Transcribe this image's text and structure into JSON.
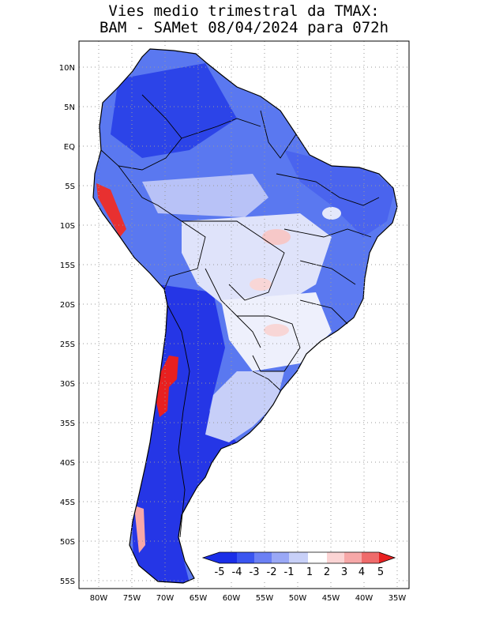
{
  "title": {
    "line1": "Vies medio trimestral da TMAX:",
    "line2": "BAM - SAMet 08/04/2024  para 072h"
  },
  "map": {
    "lat_labels": [
      "10N",
      "5N",
      "EQ",
      "5S",
      "10S",
      "15S",
      "20S",
      "25S",
      "30S",
      "35S",
      "40S",
      "45S",
      "50S",
      "55S"
    ],
    "lon_labels": [
      "80W",
      "75W",
      "70W",
      "65W",
      "60W",
      "55W",
      "50W",
      "45W",
      "40W",
      "35W"
    ],
    "grid": "dotted",
    "land_base_color": "#5a78f0"
  },
  "colorbar": {
    "labels": [
      "-5",
      "-4",
      "-3",
      "-2",
      "-1",
      "1",
      "2",
      "3",
      "4",
      "5"
    ],
    "colors": [
      "#1a2ee8",
      "#3a55f0",
      "#6b80f4",
      "#9aa8f6",
      "#c8d0f8",
      "#ffffff",
      "#fbd4d4",
      "#f7a8a8",
      "#ef6b6b",
      "#e82020"
    ]
  }
}
